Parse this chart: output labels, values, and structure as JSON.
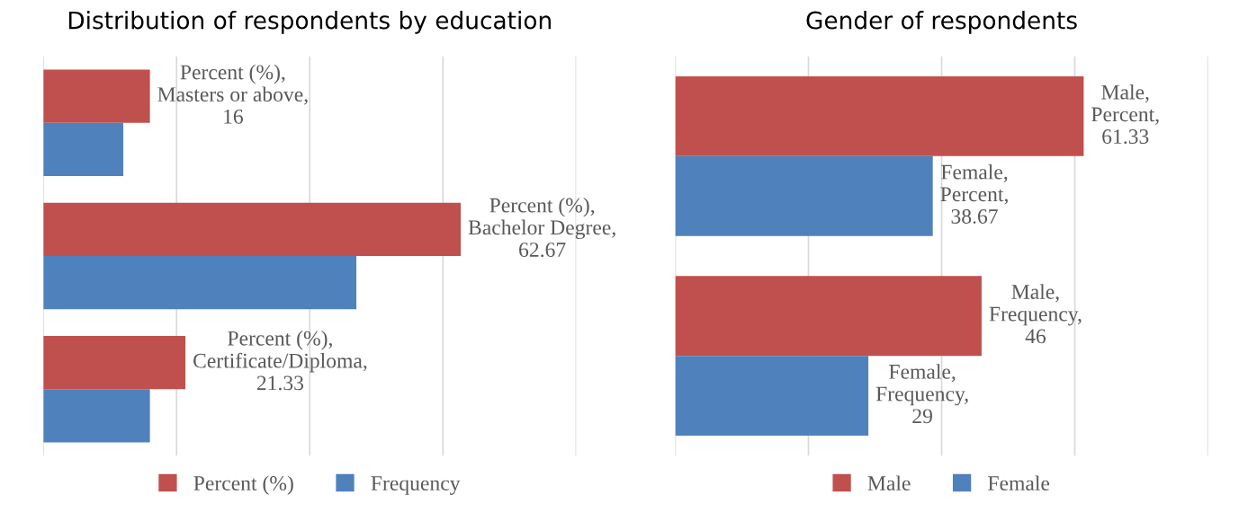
{
  "chart_data": [
    {
      "type": "bar",
      "orientation": "horizontal",
      "title": "Distribution of respondents by education",
      "categories": [
        null,
        null,
        null
      ],
      "series": [
        {
          "name": "Percent (%)",
          "color": "#c0504d",
          "values": [
            16,
            62.67,
            21.33
          ],
          "value_labels": [
            "Percent (%), Masters or above, 16",
            "Percent (%), Bachelor Degree, 62.67",
            "Percent (%), Certificate/Diploma, 21.33"
          ]
        },
        {
          "name": "Frequency",
          "color": "#4f81bd",
          "values": [
            12,
            47,
            16
          ]
        }
      ],
      "xlim": [
        0,
        80
      ],
      "xticks": [
        {
          "value": 0,
          "label": null
        },
        {
          "value": 20,
          "label": null
        },
        {
          "value": 40,
          "label": null
        },
        {
          "value": 60,
          "label": null
        },
        {
          "value": 80,
          "label": null
        }
      ],
      "grid": "x",
      "legend": "bottom"
    },
    {
      "type": "bar",
      "orientation": "horizontal",
      "title": "Gender of respondents",
      "categories": [
        null,
        null
      ],
      "series": [
        {
          "name": "Male",
          "color": "#c0504d",
          "values": [
            61.33,
            46
          ],
          "value_labels": [
            "Male, Percent, 61.33",
            "Male, Frequency, 46"
          ]
        },
        {
          "name": "Female",
          "color": "#4f81bd",
          "values": [
            38.67,
            29
          ],
          "value_labels": [
            "Female, Percent, 38.67",
            "Female, Frequency, 29"
          ]
        }
      ],
      "xlim": [
        0,
        80
      ],
      "xticks": [
        {
          "value": 0,
          "label": null
        },
        {
          "value": 20,
          "label": null
        },
        {
          "value": 40,
          "label": null
        },
        {
          "value": 60,
          "label": null
        },
        {
          "value": 80,
          "label": null
        }
      ],
      "grid": "x",
      "legend": "bottom"
    }
  ]
}
